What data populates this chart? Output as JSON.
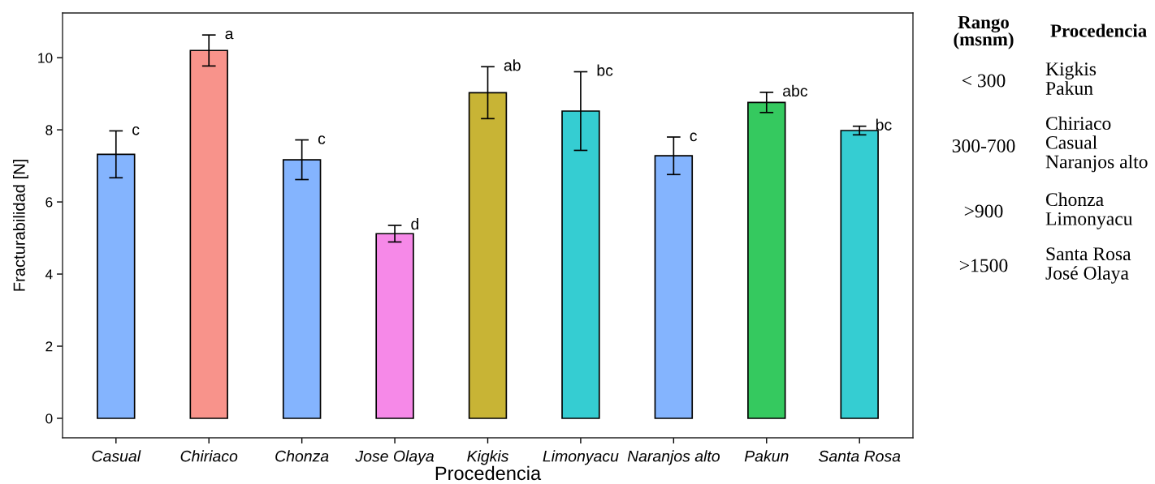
{
  "chart_data": [
    {
      "type": "bar",
      "xlabel": "Procedencia",
      "ylabel": "Fracturabilidad [N]",
      "categories": [
        "Casual",
        "Chiriaco",
        "Chonza",
        "Jose Olaya",
        "Kigkis",
        "Limonyacu",
        "Naranjos alto",
        "Pakun",
        "Santa Rosa"
      ],
      "values": [
        7.32,
        10.2,
        7.17,
        5.12,
        9.03,
        8.52,
        7.28,
        8.76,
        7.98
      ],
      "errors": [
        0.65,
        0.43,
        0.55,
        0.23,
        0.72,
        1.09,
        0.52,
        0.28,
        0.12
      ],
      "colors": [
        "#84b4fe",
        "#f8938b",
        "#84b4fe",
        "#f689e8",
        "#c8b435",
        "#35cdd2",
        "#84b4fe",
        "#35c95f",
        "#35cdd2"
      ],
      "ylim": [
        -0.54,
        11.24
      ],
      "yticks": [
        0,
        2,
        4,
        6,
        8,
        10
      ],
      "annotations": [
        {
          "text": "c",
          "x": "Casual",
          "y": 7.97
        },
        {
          "text": "a",
          "x": "Chiriaco",
          "y": 10.63
        },
        {
          "text": "c",
          "x": "Chonza",
          "y": 7.72
        },
        {
          "text": "d",
          "x": "Jose Olaya",
          "y": 5.35
        },
        {
          "text": "ab",
          "x": "Kigkis",
          "y": 9.75
        },
        {
          "text": "bc",
          "x": "Limonyacu",
          "y": 9.61
        },
        {
          "text": "c",
          "x": "Naranjos alto",
          "y": 7.8
        },
        {
          "text": "abc",
          "x": "Pakun",
          "y": 9.04
        },
        {
          "text": "bc",
          "x": "Santa Rosa",
          "y": 8.1
        }
      ]
    },
    {
      "type": "other",
      "annotations": [
        "Rango\n(msnm)",
        "Procedencia",
        "< 300",
        "Kigkis\nPakun",
        "300-700",
        "Chiriaco\nCasual\nNaranjos alto",
        ">900",
        "Chonza\nLimonyacu",
        ">1500",
        "Santa Rosa\nJosé Olaya"
      ]
    }
  ]
}
